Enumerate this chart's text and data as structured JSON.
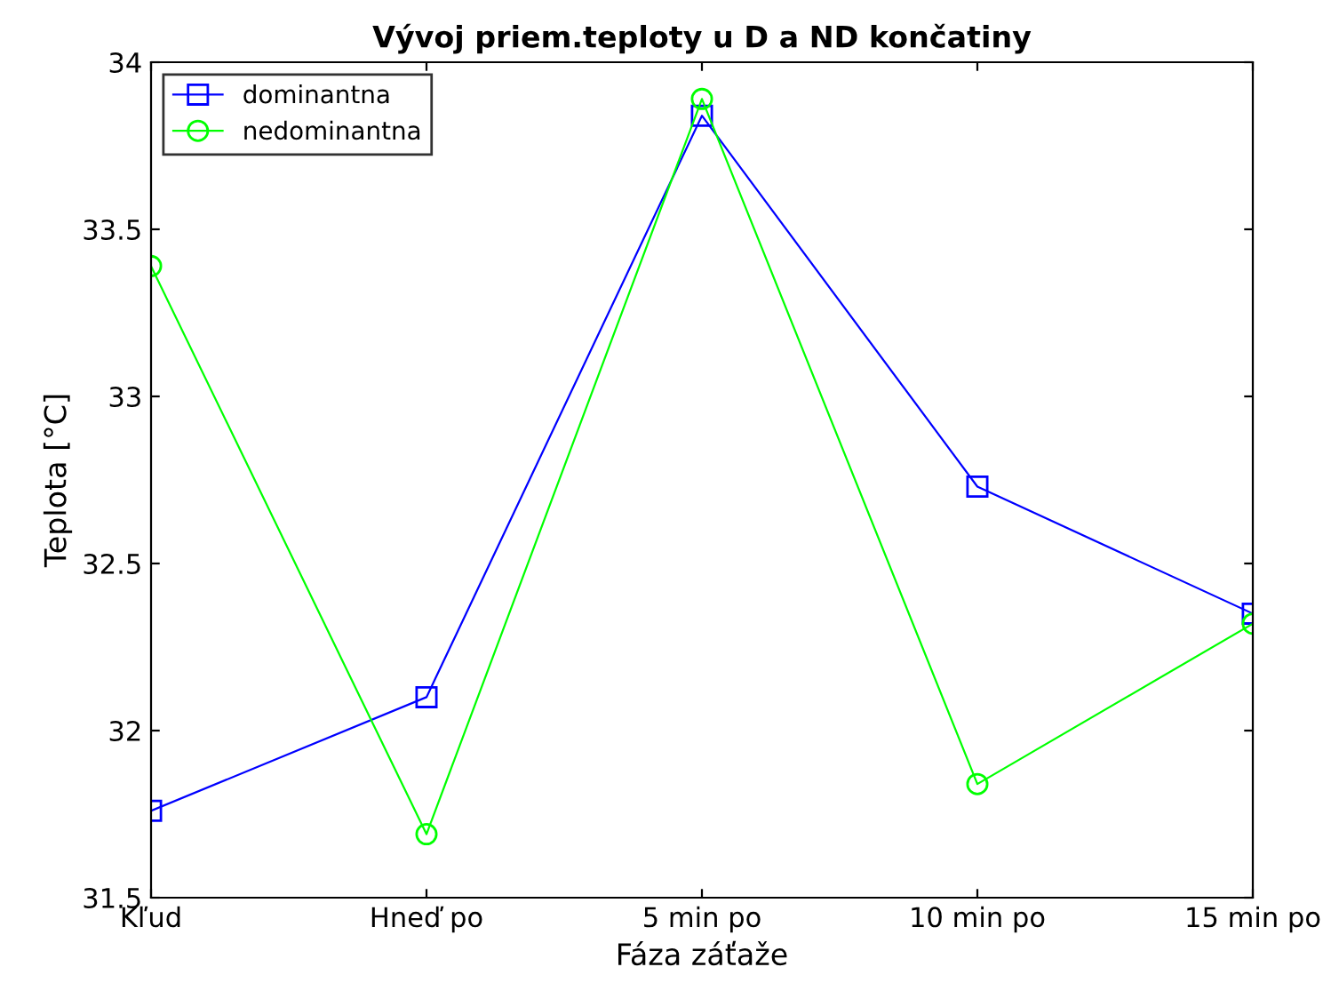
{
  "chart_data": {
    "type": "line",
    "title": "Vývoj priem.teploty u D a ND končatiny",
    "xlabel": "Fáza záťaže",
    "ylabel": "Teplota [°C]",
    "categories": [
      "Kľud",
      "Hneď po",
      "5 min po",
      "10 min po",
      "15 min po"
    ],
    "series": [
      {
        "name": "dominantna",
        "color": "#0000ff",
        "marker": "square",
        "values": [
          31.76,
          32.1,
          33.84,
          32.73,
          32.35
        ]
      },
      {
        "name": "nedominantna",
        "color": "#00ff00",
        "marker": "circle",
        "values": [
          33.39,
          31.69,
          33.89,
          31.84,
          32.32
        ]
      }
    ],
    "ylim": [
      31.5,
      34
    ],
    "yticks": [
      31.5,
      32,
      32.5,
      33,
      33.5,
      34
    ],
    "grid": false,
    "legend": "top left",
    "line_style": "solid"
  }
}
